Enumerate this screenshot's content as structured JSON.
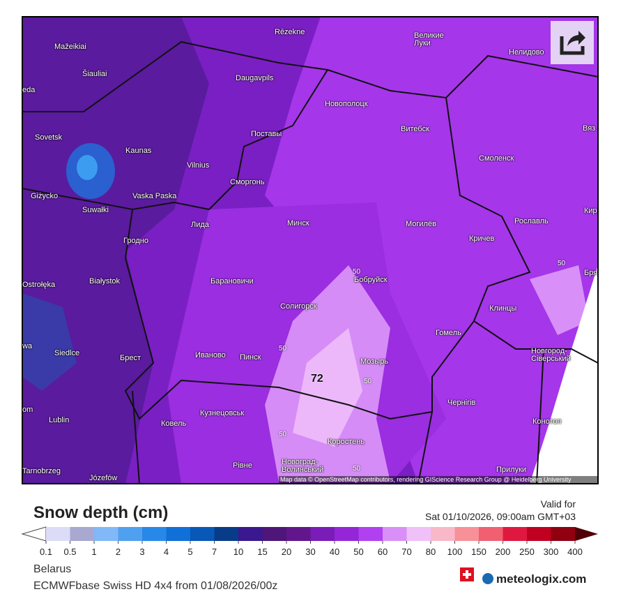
{
  "map": {
    "cities": [
      "Mažeikiai",
      "Rēzekne",
      "Великие\nЛуки",
      "Нелидово",
      "Šiauliai",
      "Daugavpils",
      "Новополоцк",
      "Sovetsk",
      "Витебск",
      "Вяз",
      "Kaunas",
      "Поставы",
      "Смоленск",
      "Vilnius",
      "Сморгонь",
      "Vaska Paska",
      "Suwałki",
      "Giżycko",
      "Лида",
      "Минск",
      "Могилёв",
      "Рославль",
      "Кир",
      "Гродно",
      "Кричев",
      "Białystok",
      "Барановичи",
      "Бобруйск",
      "Ostrołęka",
      "Бря",
      "Солигорск",
      "Клинцы",
      "Гомель",
      "Siedlce",
      "Брест",
      "Иваново",
      "Пинск",
      "Мозырь",
      "Новгород-\nСіверський",
      "Чернігів",
      "Lublin",
      "Ковель",
      "Кузнецовськ",
      "Конотоп",
      "Коростень",
      "Рівне",
      "Новоград-\nВолинський",
      "Прилуки",
      "Tarnobrzeg",
      "Józefów",
      "eda",
      "wa",
      "om"
    ],
    "contour_labels": [
      "50",
      "50",
      "50",
      "50",
      "50",
      "50",
      "72"
    ],
    "attribution": "Map data © OpenStreetMap contributors, rendering GIScience Research Group @ Heidelberg University"
  },
  "legend": {
    "title": "Snow depth (cm)",
    "valid_for": "Valid for",
    "valid_time": "Sat 01/10/2026, 09:00am GMT+03",
    "ticks": [
      0.1,
      0.5,
      1,
      2,
      3,
      4,
      5,
      7,
      10,
      15,
      20,
      30,
      40,
      50,
      60,
      70,
      80,
      100,
      150,
      200,
      250,
      300,
      400
    ],
    "colors": [
      "#dcdcf8",
      "#a8a8d0",
      "#80b8f8",
      "#50a0f0",
      "#2888e8",
      "#1070d8",
      "#0858b8",
      "#083c88",
      "#3a1890",
      "#4e1678",
      "#62168c",
      "#7a1cb8",
      "#9426d8",
      "#b040f0",
      "#d890f8",
      "#f0c0f8",
      "#f8b8c8",
      "#f89098",
      "#f06070",
      "#e01840",
      "#c00020",
      "#900010"
    ],
    "over_color": "#500008"
  },
  "footer": {
    "region": "Belarus",
    "model": "ECMWFbase Swiss HD 4x4 from 01/08/2026/00z",
    "brand": "meteologix.com"
  }
}
